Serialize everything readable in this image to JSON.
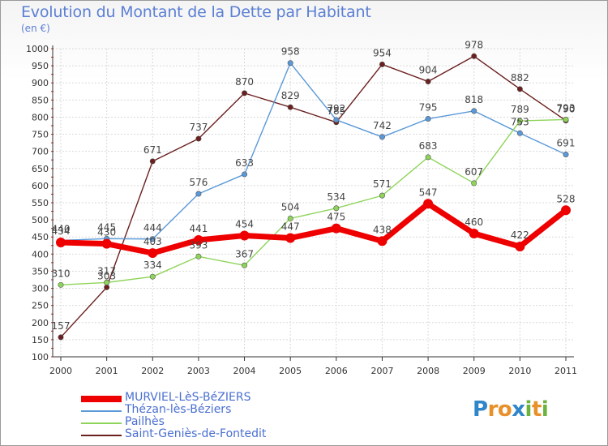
{
  "header": {
    "title": "Evolution du Montant de la Dette par Habitant",
    "unit": "(en €)"
  },
  "logo": {
    "text": "Proxiti",
    "letter_colors": [
      "#2f86c8",
      "#e8902a",
      "#e8902a",
      "#2f86c8",
      "#6cb33e",
      "#e8902a",
      "#6cb33e"
    ]
  },
  "chart_data": {
    "type": "line",
    "x": [
      "2000",
      "2001",
      "2002",
      "2003",
      "2004",
      "2005",
      "2006",
      "2007",
      "2008",
      "2009",
      "2010",
      "2011"
    ],
    "yticks": [
      100,
      150,
      200,
      250,
      300,
      350,
      400,
      450,
      500,
      550,
      600,
      650,
      700,
      750,
      800,
      850,
      900,
      950,
      1000
    ],
    "ylim": [
      100,
      1000
    ],
    "grid": true,
    "legend_position": "bottom-left",
    "series": [
      {
        "name": "MURVIEL-LèS-BéZIERS",
        "color": "#ee0000",
        "values": [
          434,
          430,
          403,
          441,
          454,
          447,
          475,
          438,
          547,
          460,
          422,
          528
        ]
      },
      {
        "name": "Thézan-lès-Béziers",
        "color": "#5a99d8",
        "values": [
          440,
          445,
          444,
          576,
          633,
          958,
          792,
          742,
          795,
          818,
          753,
          691
        ]
      },
      {
        "name": "Pailhès",
        "color": "#8fd45a",
        "values": [
          310,
          317,
          334,
          393,
          367,
          504,
          534,
          571,
          683,
          607,
          789,
          793
        ]
      },
      {
        "name": "Saint-Geniès-de-Fontedit",
        "color": "#6b1f1f",
        "values": [
          157,
          303,
          671,
          737,
          870,
          829,
          785,
          954,
          904,
          978,
          882,
          790
        ]
      }
    ]
  }
}
